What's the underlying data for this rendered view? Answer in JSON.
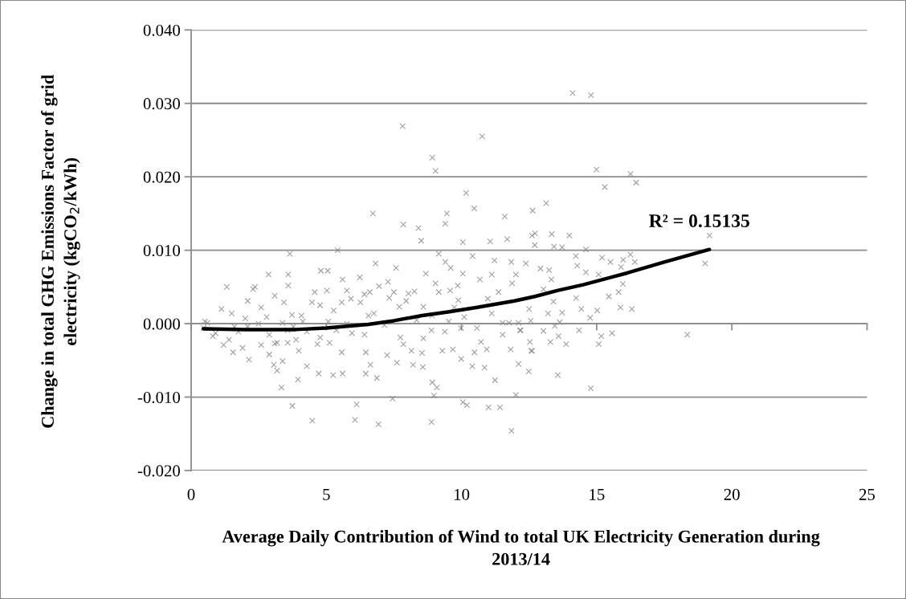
{
  "chart_data": {
    "type": "scatter",
    "xlabel": "Average Daily Contribution of Wind to total UK Electricity Generation during 2013/14",
    "ylabel": "Change in total GHG Emissions Factor of grid electricity (kgCO$_{2}$/kWh)",
    "annotations": [
      "R² = 0.15135"
    ],
    "xlim": [
      0,
      25
    ],
    "ylim": [
      -0.02,
      0.04
    ],
    "xticks": [
      0,
      5,
      10,
      15,
      20,
      25
    ],
    "yticks": [
      {
        "value": -0.02,
        "label": "-0.020"
      },
      {
        "value": -0.01,
        "label": "-0.010"
      },
      {
        "value": 0,
        "label": "0.000"
      },
      {
        "value": 0.01,
        "label": "0.010"
      },
      {
        "value": 0.02,
        "label": "0.020"
      },
      {
        "value": 0.03,
        "label": "0.030"
      },
      {
        "value": 0.04,
        "label": "0.040"
      }
    ],
    "grid": "y",
    "series": [
      {
        "marker": "cross",
        "color": "#808080",
        "x": [
          7.82,
          10.76,
          8.92,
          9.04,
          10.17,
          10.47,
          6.72,
          9.46,
          9.4,
          7.85,
          8.41,
          11.6,
          12.63,
          8.51,
          10.05,
          11.06,
          11.69,
          12.61,
          5.42,
          3.65,
          9.16,
          10.41,
          6.82,
          7.58,
          11.22,
          11.84,
          9.4,
          9.6,
          4.8,
          5.05,
          2.86,
          3.59,
          8.68,
          10.05,
          11.12,
          12.01,
          6.24,
          1.32,
          2.36,
          3.59,
          5.6,
          7.28,
          9.04,
          10.68,
          11.87,
          9.86,
          14.11,
          14.79,
          14.99,
          16.25,
          16.46,
          15.3,
          13.13,
          19.17,
          13.34,
          13.99,
          12.72,
          12.71,
          13.42,
          13.72,
          14.6,
          19.01,
          14.23,
          15.2,
          16.25,
          15.98,
          16.41,
          15.51,
          14.28,
          15.9,
          12.38,
          12.92,
          13.24,
          14.6,
          15.07,
          13.32,
          15.97,
          13.03,
          15.45,
          15.81,
          14.24,
          13.4,
          15.88,
          16.3,
          12.5,
          14.43,
          15.02,
          13.72,
          13.2,
          14.76,
          12.56,
          13.63,
          13.45,
          12.16,
          13.03,
          14.35,
          18.35,
          15.57,
          15.17,
          13.59,
          13.29,
          12.53,
          13.87,
          15.08,
          12.58,
          12.11,
          12.49,
          13.56,
          14.78,
          12.01,
          3.74,
          4.48,
          6.06,
          6.93,
          8.89,
          6.12,
          7.45,
          10.05,
          10.2,
          11.0,
          11.42,
          11.85,
          8.98,
          8.92,
          9.09,
          11.24,
          3.34,
          3.95,
          3.18,
          3.06,
          4.72,
          5.25,
          5.6,
          6.46,
          6.87,
          10.4,
          10.85,
          9.99,
          8.21,
          8.57,
          7.61,
          6.63,
          4.28,
          10.48,
          10.93,
          11.82,
          12.61,
          10.72,
          11.52,
          12.19,
          9.29,
          9.68,
          8.15,
          8.54,
          7.85,
          7.25,
          6.46,
          5.57,
          5.12,
          4.67,
          3.98,
          3.38,
          2.89,
          2.14,
          1.55,
          1.2,
          0.8,
          3.09,
          3.57,
          3.88,
          2.59,
          1.9,
          1.75,
          0.51,
          0.46,
          1.12,
          2.09,
          1.5,
          2.29,
          3.09,
          2.59,
          3.43,
          3.73,
          4.13,
          4.47,
          4.57,
          5.02,
          4.77,
          5.27,
          5.57,
          5.76,
          5.91,
          6.26,
          6.41,
          6.61,
          6.95,
          6.76,
          7.33,
          7.5,
          7.7,
          7.95,
          8.04,
          8.26,
          8.59,
          8.91,
          9.16,
          9.58,
          9.88,
          9.73,
          10.1,
          10.97,
          11.37,
          11.12,
          11.76,
          12.11,
          2.09,
          2.89,
          3.57,
          4.28,
          4.77,
          5.37,
          5.95,
          6.41,
          7.15,
          7.74,
          8.59,
          8.89,
          9.38,
          9.98,
          10.57,
          11.52,
          4.08,
          5.07,
          5.76,
          6.56,
          8.34,
          9.53,
          0.6,
          0.9,
          1.6,
          1.4,
          2.0,
          2.79,
          3.38,
          2.49,
          3.78,
          3.18
        ],
        "values": [
          0.0269,
          0.0255,
          0.0226,
          0.0208,
          0.0178,
          0.0157,
          0.015,
          0.015,
          0.0136,
          0.0135,
          0.013,
          0.0146,
          0.0154,
          0.0113,
          0.0111,
          0.0112,
          0.0115,
          0.012,
          0.01,
          0.0095,
          0.0095,
          0.0092,
          0.0082,
          0.0076,
          0.0086,
          0.0084,
          0.0084,
          0.0076,
          0.0072,
          0.0072,
          0.0067,
          0.0067,
          0.0068,
          0.0068,
          0.0067,
          0.0067,
          0.0063,
          0.005,
          0.005,
          0.0052,
          0.006,
          0.0057,
          0.0055,
          0.006,
          0.0055,
          0.0052,
          0.0314,
          0.0311,
          0.021,
          0.0204,
          0.0192,
          0.0186,
          0.0164,
          0.012,
          0.0122,
          0.012,
          0.0123,
          0.0107,
          0.0105,
          0.0104,
          0.0101,
          0.0082,
          0.0092,
          0.009,
          0.0094,
          0.0087,
          0.0084,
          0.0084,
          0.0079,
          0.0077,
          0.0082,
          0.0075,
          0.0073,
          0.007,
          0.0067,
          0.006,
          0.0054,
          0.0047,
          0.0037,
          0.0043,
          0.0035,
          0.003,
          0.0022,
          0.002,
          0.002,
          0.002,
          0.0018,
          0.0015,
          0.0014,
          0.0008,
          0.0004,
          0.0002,
          -0.0003,
          -0.0009,
          -0.001,
          -0.0009,
          -0.0015,
          -0.0013,
          -0.0017,
          -0.0017,
          -0.0025,
          -0.0025,
          -0.0028,
          -0.0028,
          -0.0037,
          -0.0055,
          -0.0065,
          -0.007,
          -0.0088,
          -0.0097,
          -0.0112,
          -0.0132,
          -0.0131,
          -0.0137,
          -0.0134,
          -0.011,
          -0.0102,
          -0.0107,
          -0.0111,
          -0.0114,
          -0.0114,
          -0.0146,
          -0.0098,
          -0.008,
          -0.0087,
          -0.0077,
          -0.0087,
          -0.0076,
          -0.0064,
          -0.0056,
          -0.0068,
          -0.007,
          -0.0068,
          -0.0068,
          -0.0074,
          -0.0058,
          -0.006,
          -0.0048,
          -0.0056,
          -0.0059,
          -0.0053,
          -0.0056,
          -0.0058,
          -0.0039,
          -0.0035,
          -0.0035,
          -0.0037,
          -0.0025,
          -0.0015,
          -0.0009,
          -0.0037,
          -0.0035,
          -0.0037,
          -0.004,
          -0.0028,
          -0.0043,
          -0.0039,
          -0.0039,
          -0.0026,
          -0.0028,
          -0.0037,
          -0.0051,
          -0.0042,
          -0.0049,
          -0.0039,
          -0.0029,
          -0.0017,
          -0.0027,
          -0.0026,
          -0.0022,
          -0.0029,
          -0.0033,
          -0.0011,
          0.0003,
          -0.0006,
          0.002,
          0.0031,
          0.0014,
          0.0047,
          0.0038,
          0.0022,
          0.0029,
          0.0012,
          0.0003,
          0.0029,
          0.0043,
          0.0045,
          0.0025,
          0.0018,
          0.0029,
          0.0045,
          0.0034,
          0.0029,
          0.004,
          0.0043,
          0.0051,
          0.0014,
          0.0035,
          0.0043,
          0.0023,
          0.0031,
          0.0041,
          0.0044,
          0.0023,
          0.0011,
          0.0043,
          0.0045,
          0.0032,
          0.0022,
          0.0009,
          0.0034,
          0.0043,
          0.0014,
          0.0001,
          0.0001,
          -0.0004,
          -0.0015,
          -0.0009,
          -0.0011,
          -0.0019,
          -0.0009,
          -0.0013,
          -0.0015,
          -0.0002,
          -0.0019,
          -0.002,
          -0.0009,
          -0.0011,
          -0.0006,
          -0.0006,
          0.0001,
          0.0011,
          0.0003,
          0.0,
          0.0011,
          0.0005,
          0.0003,
          0.0001,
          -0.0013,
          -0.0004,
          -0.0022,
          0.0007,
          0.0009,
          0.0001,
          0.0,
          -0.0004,
          -0.0026
        ]
      },
      {
        "type": "line",
        "marker": "none",
        "color": "#000000",
        "x": [
          0.45,
          2.0,
          3.87,
          5.0,
          6.55,
          7.5,
          8.54,
          9.5,
          10.54,
          11.96,
          12.71,
          13.54,
          14.5,
          16.13,
          17.5,
          19.17
        ],
        "values": [
          -0.0007,
          -0.0008,
          -0.0008,
          -0.0006,
          -0.0001,
          0.0004,
          0.0011,
          0.0016,
          0.0022,
          0.0031,
          0.0037,
          0.0045,
          0.0053,
          0.0069,
          0.0084,
          0.0101
        ]
      }
    ]
  }
}
